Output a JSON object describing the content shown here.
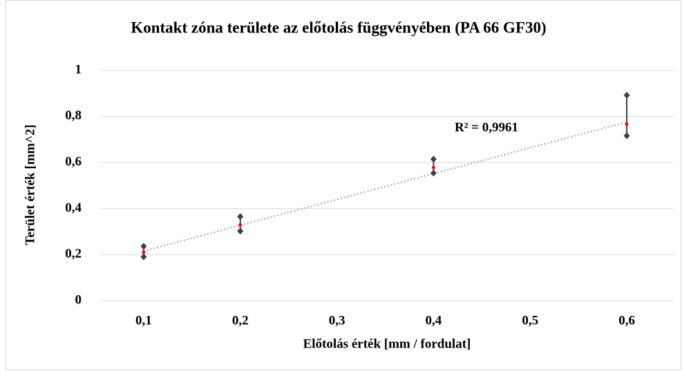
{
  "chart_data": {
    "type": "errorbar",
    "title": "Kontakt zóna területe az előtolás függvényében (PA 66 GF30)",
    "xlabel": "Előtolás érték [mm / fordulat]",
    "ylabel": "Terület érték [mm^2]",
    "x": [
      0.1,
      0.2,
      0.4,
      0.6
    ],
    "series": [
      {
        "color": "#404040",
        "values": [
          0.236,
          0.365,
          0.614,
          0.892
        ]
      },
      {
        "color": "#404040",
        "values": [
          0.19,
          0.302,
          0.554,
          0.716
        ]
      },
      {
        "color": "#ff0000",
        "values": [
          0.21,
          0.329,
          0.578,
          0.766
        ]
      }
    ],
    "trendline": {
      "x": [
        0.1,
        0.6
      ],
      "values": [
        0.215,
        0.776
      ],
      "color": "#a6a6a6"
    },
    "annotation": "R² = 0,9961",
    "xlim": [
      0.05,
      0.65
    ],
    "xticks": [
      {
        "value": 0.1,
        "label": "0,1"
      },
      {
        "value": 0.2,
        "label": "0,2"
      },
      {
        "value": 0.3,
        "label": "0,3"
      },
      {
        "value": 0.4,
        "label": "0,4"
      },
      {
        "value": 0.5,
        "label": "0,5"
      },
      {
        "value": 0.6,
        "label": "0,6"
      }
    ],
    "ylim": [
      0,
      1
    ],
    "yticks": [
      0,
      {
        "value": 0.2,
        "label": "0,2"
      },
      {
        "value": 0.4,
        "label": "0,4"
      },
      {
        "value": 0.6,
        "label": "0,6"
      },
      {
        "value": 0.8,
        "label": "0,8"
      },
      1
    ],
    "grid": true
  }
}
